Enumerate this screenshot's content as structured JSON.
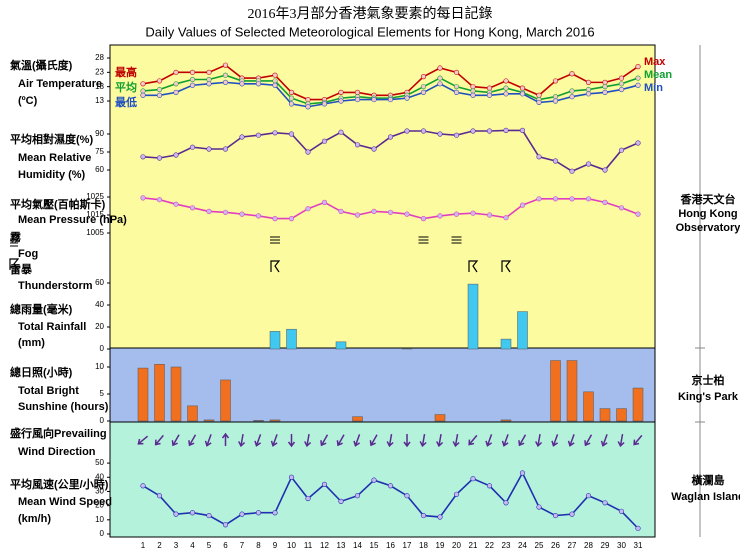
{
  "title_zh": "2016年3月部分香港氣象要素的每日記錄",
  "title_en": "Daily Values of Selected Meteorological Elements for Hong Kong, March 2016",
  "stations": [
    {
      "name_zh": "香港天文台",
      "name_en": [
        "Hong Kong",
        "Observatory"
      ]
    },
    {
      "name_zh": "京士柏",
      "name_en": [
        "King's Park"
      ]
    },
    {
      "name_zh": "橫瀾島",
      "name_en": [
        "Waglan Island"
      ]
    }
  ],
  "chart_data": [
    {
      "type": "line",
      "label_zh": "氣溫(攝氏度)",
      "label_en": [
        "Air Temperature",
        "(ºC)"
      ],
      "ylim": [
        10,
        31
      ],
      "yticks": [
        13,
        18,
        23,
        28
      ],
      "series": [
        {
          "name": "Max",
          "name_zh": "最高",
          "color": "#c00000",
          "values": [
            19,
            20,
            23,
            23,
            23,
            25.5,
            21,
            21,
            22,
            16,
            13.5,
            13.5,
            16,
            16,
            15,
            15,
            16,
            21.5,
            24.5,
            23,
            18,
            17.5,
            20,
            17.5,
            15,
            20,
            22.5,
            19.5,
            19.5,
            21,
            25
          ]
        },
        {
          "name": "Mean",
          "name_zh": "平均",
          "color": "#10a030",
          "values": [
            16.5,
            17,
            19,
            20.5,
            20.5,
            22,
            20,
            20,
            20,
            14,
            12,
            12.5,
            14,
            14.5,
            14,
            14,
            15,
            18,
            21,
            18,
            16.5,
            16,
            17.5,
            16,
            13.5,
            14.5,
            16.5,
            17,
            18,
            19,
            21
          ]
        },
        {
          "name": "Min",
          "name_zh": "最低",
          "color": "#2050c0",
          "values": [
            15,
            15,
            16,
            18.5,
            19,
            19.5,
            19,
            19,
            18.5,
            12,
            11,
            12,
            13,
            13.5,
            13.5,
            13.5,
            14,
            16,
            19,
            16,
            15,
            15,
            15.5,
            15.5,
            12.5,
            13,
            14.5,
            15.5,
            16,
            17,
            18.5
          ]
        }
      ]
    },
    {
      "type": "line",
      "label_zh": "平均相對濕度(%)",
      "label_en": [
        "Mean Relative",
        "Humidity  (%)"
      ],
      "ylim": [
        55,
        100
      ],
      "yticks": [
        60,
        75,
        90
      ],
      "color": "#5a2a90",
      "values": [
        71,
        70,
        72.5,
        79,
        77.5,
        77.5,
        87.5,
        89,
        91,
        90,
        75,
        84,
        91.5,
        81,
        77.5,
        87.5,
        92.5,
        92.5,
        90,
        89,
        92.5,
        92.5,
        93,
        93,
        71,
        67.5,
        59,
        65,
        60,
        76.5,
        82.5
      ]
    },
    {
      "type": "line",
      "label_zh": "平均氣壓(百帕斯卡)",
      "label_en": [
        "Mean Pressure (hPa)"
      ],
      "ylim": [
        1003,
        1030
      ],
      "yticks": [
        1005,
        1015,
        1025
      ],
      "color": "#e040c0",
      "values": [
        1024.5,
        1023.5,
        1021,
        1019,
        1017,
        1016.5,
        1015.5,
        1014.5,
        1013,
        1013,
        1018.5,
        1022,
        1017,
        1015,
        1017,
        1016.5,
        1015.5,
        1013,
        1014.5,
        1015.5,
        1016,
        1015,
        1013.5,
        1020.5,
        1024,
        1024,
        1024,
        1024,
        1022,
        1019,
        1015.5
      ]
    },
    {
      "type": "fog",
      "label_zh": "霧",
      "label_en": [
        "Fog"
      ],
      "days": [
        9,
        18,
        20
      ]
    },
    {
      "type": "thunder",
      "label_zh": "雷暴",
      "label_en": [
        "Thunderstorm"
      ],
      "days": [
        9,
        21,
        23
      ]
    },
    {
      "type": "bar",
      "label_zh": "總雨量(毫米)",
      "label_en": [
        "Total Rainfall",
        "(mm)"
      ],
      "ylim": [
        0,
        65
      ],
      "yticks": [
        0,
        20,
        40,
        60
      ],
      "color": "#40c8f0",
      "values": [
        0,
        0,
        0,
        0,
        0,
        0,
        0,
        0,
        16,
        18,
        0,
        0,
        6.5,
        0,
        0,
        0,
        0.5,
        0,
        0,
        0,
        59,
        0,
        9,
        34,
        0,
        0,
        0,
        0,
        0,
        0,
        0
      ]
    },
    {
      "type": "bar",
      "label_zh": "總日照(小時)",
      "label_en": [
        "Total Bright",
        "Sunshine  (hours)"
      ],
      "ylim": [
        0,
        12.5
      ],
      "yticks": [
        0,
        5,
        10
      ],
      "color": "#f07020",
      "values": [
        9.8,
        10.5,
        10,
        2.8,
        0.2,
        7.6,
        0,
        0.1,
        0.2,
        0,
        0,
        0,
        0,
        0.8,
        0,
        0,
        0,
        0,
        1.2,
        0,
        0,
        0,
        0.2,
        0,
        0,
        11.2,
        11.2,
        5.4,
        2.3,
        2.3,
        6.1
      ]
    },
    {
      "type": "arrows",
      "label_zh": "盛行風向Prevailing",
      "label_en": [
        "Wind Direction"
      ],
      "color": "#5a2a90",
      "values": [
        50,
        40,
        30,
        30,
        20,
        180,
        10,
        20,
        20,
        0,
        10,
        30,
        30,
        20,
        30,
        10,
        0,
        10,
        10,
        10,
        40,
        20,
        20,
        30,
        10,
        20,
        20,
        30,
        20,
        10,
        40
      ]
    },
    {
      "type": "line",
      "label_zh": "平均風速(公里/小時)",
      "label_en": [
        "Mean Wind Speed",
        "(km/h)"
      ],
      "ylim": [
        0,
        55
      ],
      "yticks": [
        0,
        10,
        20,
        30,
        40,
        50
      ],
      "color": "#2030b0",
      "categories": [
        1,
        2,
        3,
        4,
        5,
        6,
        7,
        8,
        9,
        10,
        11,
        12,
        13,
        14,
        15,
        16,
        17,
        18,
        19,
        20,
        21,
        22,
        23,
        24,
        25,
        26,
        27,
        28,
        29,
        30,
        31
      ],
      "values": [
        34,
        27,
        14,
        15,
        13,
        6.5,
        14,
        15,
        15,
        40,
        25,
        35,
        23,
        27,
        38,
        34,
        27,
        13,
        12,
        28,
        39,
        34,
        22,
        43,
        19,
        13,
        14,
        27,
        22,
        16,
        4
      ]
    }
  ]
}
